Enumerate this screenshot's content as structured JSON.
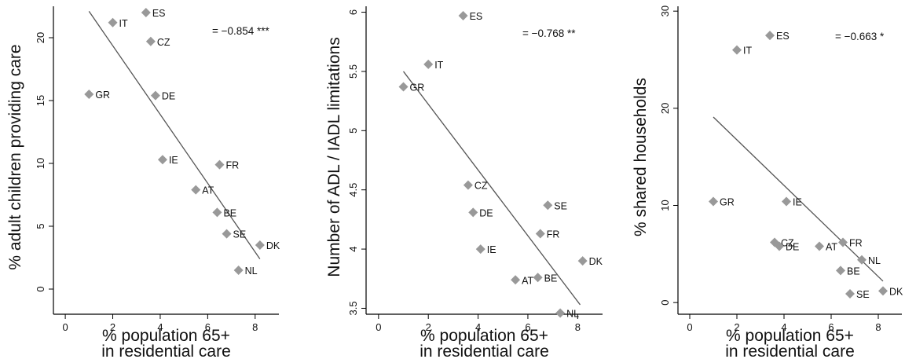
{
  "chart_data": [
    {
      "type": "scatter",
      "ylabel": "% adult children providing care",
      "xlabel_lines": [
        "% population 65+",
        "in residential care"
      ],
      "annotation": "= −0.854 ***",
      "xlim": [
        -0.5,
        9
      ],
      "ylim": [
        -2,
        22.5
      ],
      "xticks": [
        0,
        2,
        4,
        6,
        8
      ],
      "yticks": [
        0,
        5,
        10,
        15,
        20
      ],
      "points": [
        {
          "label": "ES",
          "x": 3.4,
          "y": 22.0
        },
        {
          "label": "IT",
          "x": 2.0,
          "y": 21.2
        },
        {
          "label": "CZ",
          "x": 3.6,
          "y": 19.7
        },
        {
          "label": "GR",
          "x": 1.0,
          "y": 15.5
        },
        {
          "label": "DE",
          "x": 3.8,
          "y": 15.4
        },
        {
          "label": "IE",
          "x": 4.1,
          "y": 10.3
        },
        {
          "label": "FR",
          "x": 6.5,
          "y": 9.9
        },
        {
          "label": "AT",
          "x": 5.5,
          "y": 7.9
        },
        {
          "label": "BE",
          "x": 6.4,
          "y": 6.1
        },
        {
          "label": "SE",
          "x": 6.8,
          "y": 4.4
        },
        {
          "label": "DK",
          "x": 8.2,
          "y": 3.5
        },
        {
          "label": "NL",
          "x": 7.3,
          "y": 1.5
        }
      ],
      "fit_line": [
        {
          "x": 1.0,
          "y": 22.1
        },
        {
          "x": 8.2,
          "y": 2.4
        }
      ]
    },
    {
      "type": "scatter",
      "ylabel": "Number of ADL / IADL limitations",
      "xlabel_lines": [
        "% population 65+",
        "in residential care"
      ],
      "annotation": "= −0.768 **",
      "xlim": [
        -0.5,
        9
      ],
      "ylim": [
        3.45,
        6.05
      ],
      "xticks": [
        0,
        2,
        4,
        6,
        8
      ],
      "yticks": [
        3.5,
        4,
        4.5,
        5,
        5.5,
        6
      ],
      "points": [
        {
          "label": "ES",
          "x": 3.4,
          "y": 5.97
        },
        {
          "label": "IT",
          "x": 2.0,
          "y": 5.56
        },
        {
          "label": "GR",
          "x": 1.0,
          "y": 5.37
        },
        {
          "label": "CZ",
          "x": 3.6,
          "y": 4.54
        },
        {
          "label": "SE",
          "x": 6.8,
          "y": 4.37
        },
        {
          "label": "DE",
          "x": 3.8,
          "y": 4.31
        },
        {
          "label": "FR",
          "x": 6.5,
          "y": 4.13
        },
        {
          "label": "IE",
          "x": 4.1,
          "y": 4.0
        },
        {
          "label": "DK",
          "x": 8.2,
          "y": 3.9
        },
        {
          "label": "BE",
          "x": 6.4,
          "y": 3.76
        },
        {
          "label": "AT",
          "x": 5.5,
          "y": 3.74
        },
        {
          "label": "NL",
          "x": 7.3,
          "y": 3.46
        }
      ],
      "fit_line": [
        {
          "x": 1.0,
          "y": 5.5
        },
        {
          "x": 8.1,
          "y": 3.53
        }
      ]
    },
    {
      "type": "scatter",
      "ylabel": "% shared households",
      "xlabel_lines": [
        "% population 65+",
        "in residential care"
      ],
      "annotation": "= −0.663 *",
      "xlim": [
        -0.5,
        9
      ],
      "ylim": [
        -1.2,
        30.5
      ],
      "xticks": [
        0,
        2,
        4,
        6,
        8
      ],
      "yticks": [
        0,
        10,
        20,
        30
      ],
      "points": [
        {
          "label": "ES",
          "x": 3.4,
          "y": 27.5
        },
        {
          "label": "IT",
          "x": 2.0,
          "y": 26.0
        },
        {
          "label": "GR",
          "x": 1.0,
          "y": 10.4
        },
        {
          "label": "IE",
          "x": 4.1,
          "y": 10.4
        },
        {
          "label": "CZ",
          "x": 3.6,
          "y": 6.2
        },
        {
          "label": "FR",
          "x": 6.5,
          "y": 6.2
        },
        {
          "label": "DE",
          "x": 3.8,
          "y": 5.8
        },
        {
          "label": "AT",
          "x": 5.5,
          "y": 5.8
        },
        {
          "label": "NL",
          "x": 7.3,
          "y": 4.4
        },
        {
          "label": "BE",
          "x": 6.4,
          "y": 3.3
        },
        {
          "label": "DK",
          "x": 8.2,
          "y": 1.2
        },
        {
          "label": "SE",
          "x": 6.8,
          "y": 0.9
        }
      ],
      "fit_line": [
        {
          "x": 1.0,
          "y": 19.1
        },
        {
          "x": 8.2,
          "y": 2.2
        }
      ]
    }
  ],
  "colors": {
    "marker": "#999999",
    "line": "#555555",
    "axis": "#000000",
    "text": "#111111"
  }
}
